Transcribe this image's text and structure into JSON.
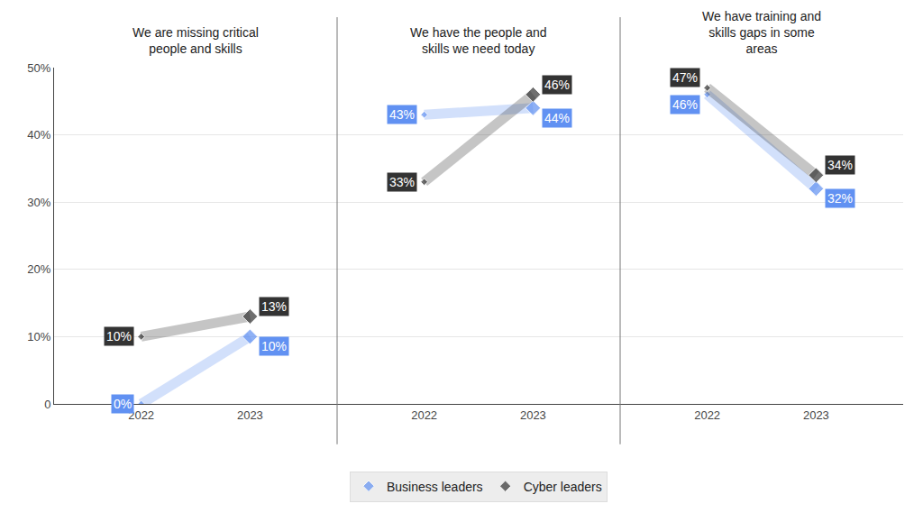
{
  "chart_data": [
    {
      "type": "line",
      "title": "We are missing critical people and skills",
      "categories": [
        "2022",
        "2023"
      ],
      "series": [
        {
          "name": "Business leaders",
          "color": "#6191f2",
          "marker": "diamond",
          "values": [
            0,
            10
          ],
          "value_labels": [
            "0%",
            "10%"
          ]
        },
        {
          "name": "Cyber leaders",
          "color": "#333333",
          "marker": "diamond",
          "values": [
            10,
            13
          ],
          "value_labels": [
            "10%",
            "13%"
          ]
        }
      ],
      "ylim": [
        0,
        50
      ],
      "yticks": [
        0,
        {
          "value": 10,
          "label": "10%"
        },
        {
          "value": 20,
          "label": "20%"
        },
        {
          "value": 30,
          "label": "30%"
        },
        {
          "value": 40,
          "label": "40%"
        },
        {
          "value": 50,
          "label": "50%"
        }
      ],
      "grid": true,
      "data_labels": true,
      "legend": "bottom"
    },
    {
      "type": "line",
      "title": "We have the people and skills we need today",
      "categories": [
        "2022",
        "2023"
      ],
      "series": [
        {
          "name": "Business leaders",
          "color": "#6191f2",
          "marker": "diamond",
          "values": [
            43,
            44
          ],
          "value_labels": [
            "43%",
            "44%"
          ]
        },
        {
          "name": "Cyber leaders",
          "color": "#333333",
          "marker": "diamond",
          "values": [
            33,
            46
          ],
          "value_labels": [
            "33%",
            "46%"
          ]
        }
      ],
      "ylim": [
        0,
        50
      ],
      "yticks": [
        0,
        {
          "value": 10,
          "label": "10%"
        },
        {
          "value": 20,
          "label": "20%"
        },
        {
          "value": 30,
          "label": "30%"
        },
        {
          "value": 40,
          "label": "40%"
        },
        {
          "value": 50,
          "label": "50%"
        }
      ],
      "grid": true,
      "data_labels": true,
      "tick_labels": "x"
    },
    {
      "type": "line",
      "title": "We have training and skills gaps in some areas",
      "categories": [
        "2022",
        "2023"
      ],
      "series": [
        {
          "name": "Business leaders",
          "color": "#6191f2",
          "marker": "diamond",
          "values": [
            46,
            32
          ],
          "value_labels": [
            "46%",
            "32%"
          ]
        },
        {
          "name": "Cyber leaders",
          "color": "#333333",
          "marker": "diamond",
          "values": [
            47,
            34
          ],
          "value_labels": [
            "47%",
            "34%"
          ]
        }
      ],
      "ylim": [
        0,
        50
      ],
      "yticks": [
        0,
        {
          "value": 10,
          "label": "10%"
        },
        {
          "value": 20,
          "label": "20%"
        },
        {
          "value": 30,
          "label": "30%"
        },
        {
          "value": 40,
          "label": "40%"
        },
        {
          "value": 50,
          "label": "50%"
        }
      ],
      "grid": true,
      "data_labels": true,
      "tick_labels": "x"
    }
  ]
}
